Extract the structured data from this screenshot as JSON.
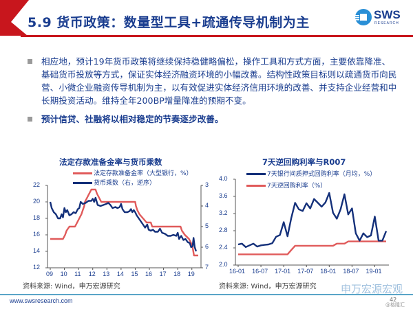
{
  "header": {
    "title": "5.9 货币政策：数量型工具+疏通传导机制为主",
    "logo_text": "SWS",
    "logo_sub": "RESEARCH",
    "accent_color": "#c8161d",
    "title_color": "#1a3d8f"
  },
  "bullets": [
    "相应地，预计19年货币政策将继续保持稳健略偏松，操作工具和方式方面，主要依靠降准、基础货币投放等方式，保证实体经济融资环境的小幅改善。结构性政策目标则以疏通货币向民营、小微企业融资传导机制为主，以有效促进实体经济信用环境的改善、并支持企业经营和中长期投资活动。维持全年200BP增量降准的预期不变。",
    "预计信贷、社融将以相对稳定的节奏逐步改善。"
  ],
  "left_chart": {
    "title": "法定存款准备金率与货币乘数",
    "legend": [
      "法定存款准备金率（大型银行，%）",
      "货币乘数（右，逆序）"
    ],
    "source": "资料来源: Wind，申万宏源研究"
  },
  "right_chart": {
    "title": "7天逆回购利率与R007",
    "legend": [
      "7天银行间质押式回购利率（月均，%）",
      "7天逆回购利率（%）"
    ],
    "source": "资料来源: Wind，申万宏源研究"
  },
  "chart_data": [
    {
      "type": "line",
      "title": "法定存款准备金率与货币乘数",
      "x": [
        "09",
        "10",
        "11",
        "12",
        "13",
        "14",
        "15",
        "16",
        "17",
        "18",
        "19"
      ],
      "ylim": [
        12,
        22
      ],
      "yticks": [
        12,
        14,
        16,
        18,
        20,
        22
      ],
      "y2lim": [
        7,
        3
      ],
      "y2ticks": [
        3,
        4,
        5,
        6,
        7
      ],
      "y2_inverted": true,
      "legend_position": "top",
      "series": [
        {
          "name": "法定存款准备金率（大型银行，%）",
          "axis": "left",
          "color": "#e05a5a",
          "points": [
            [
              0,
              15.5
            ],
            [
              0.9,
              15.5
            ],
            [
              1.05,
              16
            ],
            [
              1.15,
              16.5
            ],
            [
              1.35,
              17
            ],
            [
              1.75,
              17
            ],
            [
              1.9,
              17.5
            ],
            [
              2.05,
              18
            ],
            [
              2.2,
              18.5
            ],
            [
              2.3,
              19
            ],
            [
              2.4,
              19.5
            ],
            [
              2.45,
              20
            ],
            [
              2.6,
              20.5
            ],
            [
              2.75,
              21
            ],
            [
              2.9,
              21.5
            ],
            [
              3.2,
              21.5
            ],
            [
              3.3,
              21
            ],
            [
              3.45,
              20.5
            ],
            [
              3.6,
              20
            ],
            [
              6.0,
              20
            ],
            [
              6.05,
              19.5
            ],
            [
              6.15,
              19
            ],
            [
              6.3,
              18.5
            ],
            [
              6.55,
              18
            ],
            [
              6.8,
              17.5
            ],
            [
              7.1,
              17.5
            ],
            [
              7.2,
              17
            ],
            [
              9.2,
              17
            ],
            [
              9.3,
              16.5
            ],
            [
              9.5,
              16
            ],
            [
              9.8,
              15.5
            ],
            [
              9.95,
              15
            ],
            [
              10.05,
              14.5
            ],
            [
              10.15,
              13.5
            ],
            [
              10.45,
              13.5
            ]
          ]
        },
        {
          "name": "货币乘数（右，逆序）",
          "axis": "right",
          "color": "#14307a",
          "points": [
            [
              0,
              3.8
            ],
            [
              0.1,
              4.1
            ],
            [
              0.25,
              4.3
            ],
            [
              0.4,
              4.4
            ],
            [
              0.55,
              4.6
            ],
            [
              0.7,
              4.6
            ],
            [
              0.8,
              4.4
            ],
            [
              0.9,
              4.55
            ],
            [
              1.0,
              4.1
            ],
            [
              1.1,
              4.3
            ],
            [
              1.2,
              4.2
            ],
            [
              1.35,
              4.45
            ],
            [
              1.5,
              4.4
            ],
            [
              1.65,
              4.3
            ],
            [
              1.8,
              4.35
            ],
            [
              1.95,
              4.15
            ],
            [
              2.05,
              4.1
            ],
            [
              2.15,
              3.8
            ],
            [
              2.3,
              3.9
            ],
            [
              2.5,
              3.85
            ],
            [
              2.7,
              3.75
            ],
            [
              2.9,
              3.75
            ],
            [
              3.0,
              3.65
            ],
            [
              3.1,
              3.8
            ],
            [
              3.2,
              3.6
            ],
            [
              3.35,
              3.95
            ],
            [
              3.55,
              4.0
            ],
            [
              3.75,
              3.95
            ],
            [
              3.95,
              3.9
            ],
            [
              4.1,
              3.85
            ],
            [
              4.25,
              3.95
            ],
            [
              4.4,
              4.1
            ],
            [
              4.6,
              4.05
            ],
            [
              4.75,
              4.1
            ],
            [
              4.9,
              4.05
            ],
            [
              5.0,
              3.9
            ],
            [
              5.1,
              4.15
            ],
            [
              5.25,
              4.3
            ],
            [
              5.45,
              4.3
            ],
            [
              5.6,
              4.25
            ],
            [
              5.7,
              4.15
            ],
            [
              5.8,
              4.3
            ],
            [
              5.9,
              4.2
            ],
            [
              6.0,
              4.3
            ],
            [
              6.1,
              4.45
            ],
            [
              6.25,
              4.6
            ],
            [
              6.4,
              4.75
            ],
            [
              6.55,
              4.9
            ],
            [
              6.7,
              5.05
            ],
            [
              6.85,
              4.9
            ],
            [
              6.95,
              5.15
            ],
            [
              7.1,
              5.2
            ],
            [
              7.25,
              5.15
            ],
            [
              7.4,
              5.25
            ],
            [
              7.6,
              5.25
            ],
            [
              7.75,
              5.1
            ],
            [
              7.9,
              5.3
            ],
            [
              8.1,
              5.35
            ],
            [
              8.3,
              5.45
            ],
            [
              8.5,
              5.45
            ],
            [
              8.7,
              5.4
            ],
            [
              8.9,
              5.45
            ],
            [
              9.0,
              5.3
            ],
            [
              9.1,
              5.6
            ],
            [
              9.25,
              5.45
            ],
            [
              9.4,
              5.65
            ],
            [
              9.55,
              5.6
            ],
            [
              9.7,
              5.75
            ],
            [
              9.85,
              5.8
            ],
            [
              9.95,
              6.0
            ],
            [
              10.05,
              5.95
            ],
            [
              10.12,
              5.55
            ],
            [
              10.2,
              6.0
            ],
            [
              10.3,
              6.2
            ]
          ]
        }
      ]
    },
    {
      "type": "line",
      "title": "7天逆回购利率与R007",
      "x": [
        "16-01",
        "16-07",
        "17-01",
        "17-07",
        "18-01",
        "18-07",
        "19-01"
      ],
      "ylim": [
        2.0,
        4.0
      ],
      "yticks": [
        2.0,
        2.4,
        2.8,
        3.2,
        3.6,
        4.0
      ],
      "legend_position": "top",
      "series": [
        {
          "name": "7天银行间质押式回购利率（月均，%）",
          "color": "#14307a",
          "values": [
            2.48,
            2.5,
            2.42,
            2.46,
            2.5,
            2.43,
            2.46,
            2.47,
            2.48,
            2.51,
            2.66,
            2.7,
            3.0,
            2.67,
            3.1,
            3.45,
            3.3,
            3.26,
            3.44,
            3.32,
            3.54,
            3.45,
            3.36,
            3.46,
            3.68,
            3.22,
            3.08,
            3.3,
            3.65,
            3.18,
            3.32,
            2.74,
            2.57,
            2.74,
            2.65,
            2.69,
            3.13,
            2.57,
            2.57,
            2.79
          ]
        },
        {
          "name": "7天逆回购利率（%）",
          "color": "#e05a5a",
          "values": [
            2.25,
            2.25,
            2.25,
            2.25,
            2.25,
            2.25,
            2.25,
            2.25,
            2.25,
            2.25,
            2.25,
            2.25,
            2.25,
            2.25,
            2.35,
            2.45,
            2.45,
            2.45,
            2.45,
            2.45,
            2.45,
            2.45,
            2.45,
            2.45,
            2.45,
            2.45,
            2.5,
            2.5,
            2.5,
            2.55,
            2.55,
            2.55,
            2.55,
            2.55,
            2.55,
            2.55,
            2.55,
            2.55,
            2.55,
            2.55
          ]
        }
      ]
    }
  ],
  "footer": {
    "url": "www.swsresearch.com",
    "page": "42",
    "watermark": "申万宏源宏观",
    "watermark_small": "@格隆汇"
  }
}
